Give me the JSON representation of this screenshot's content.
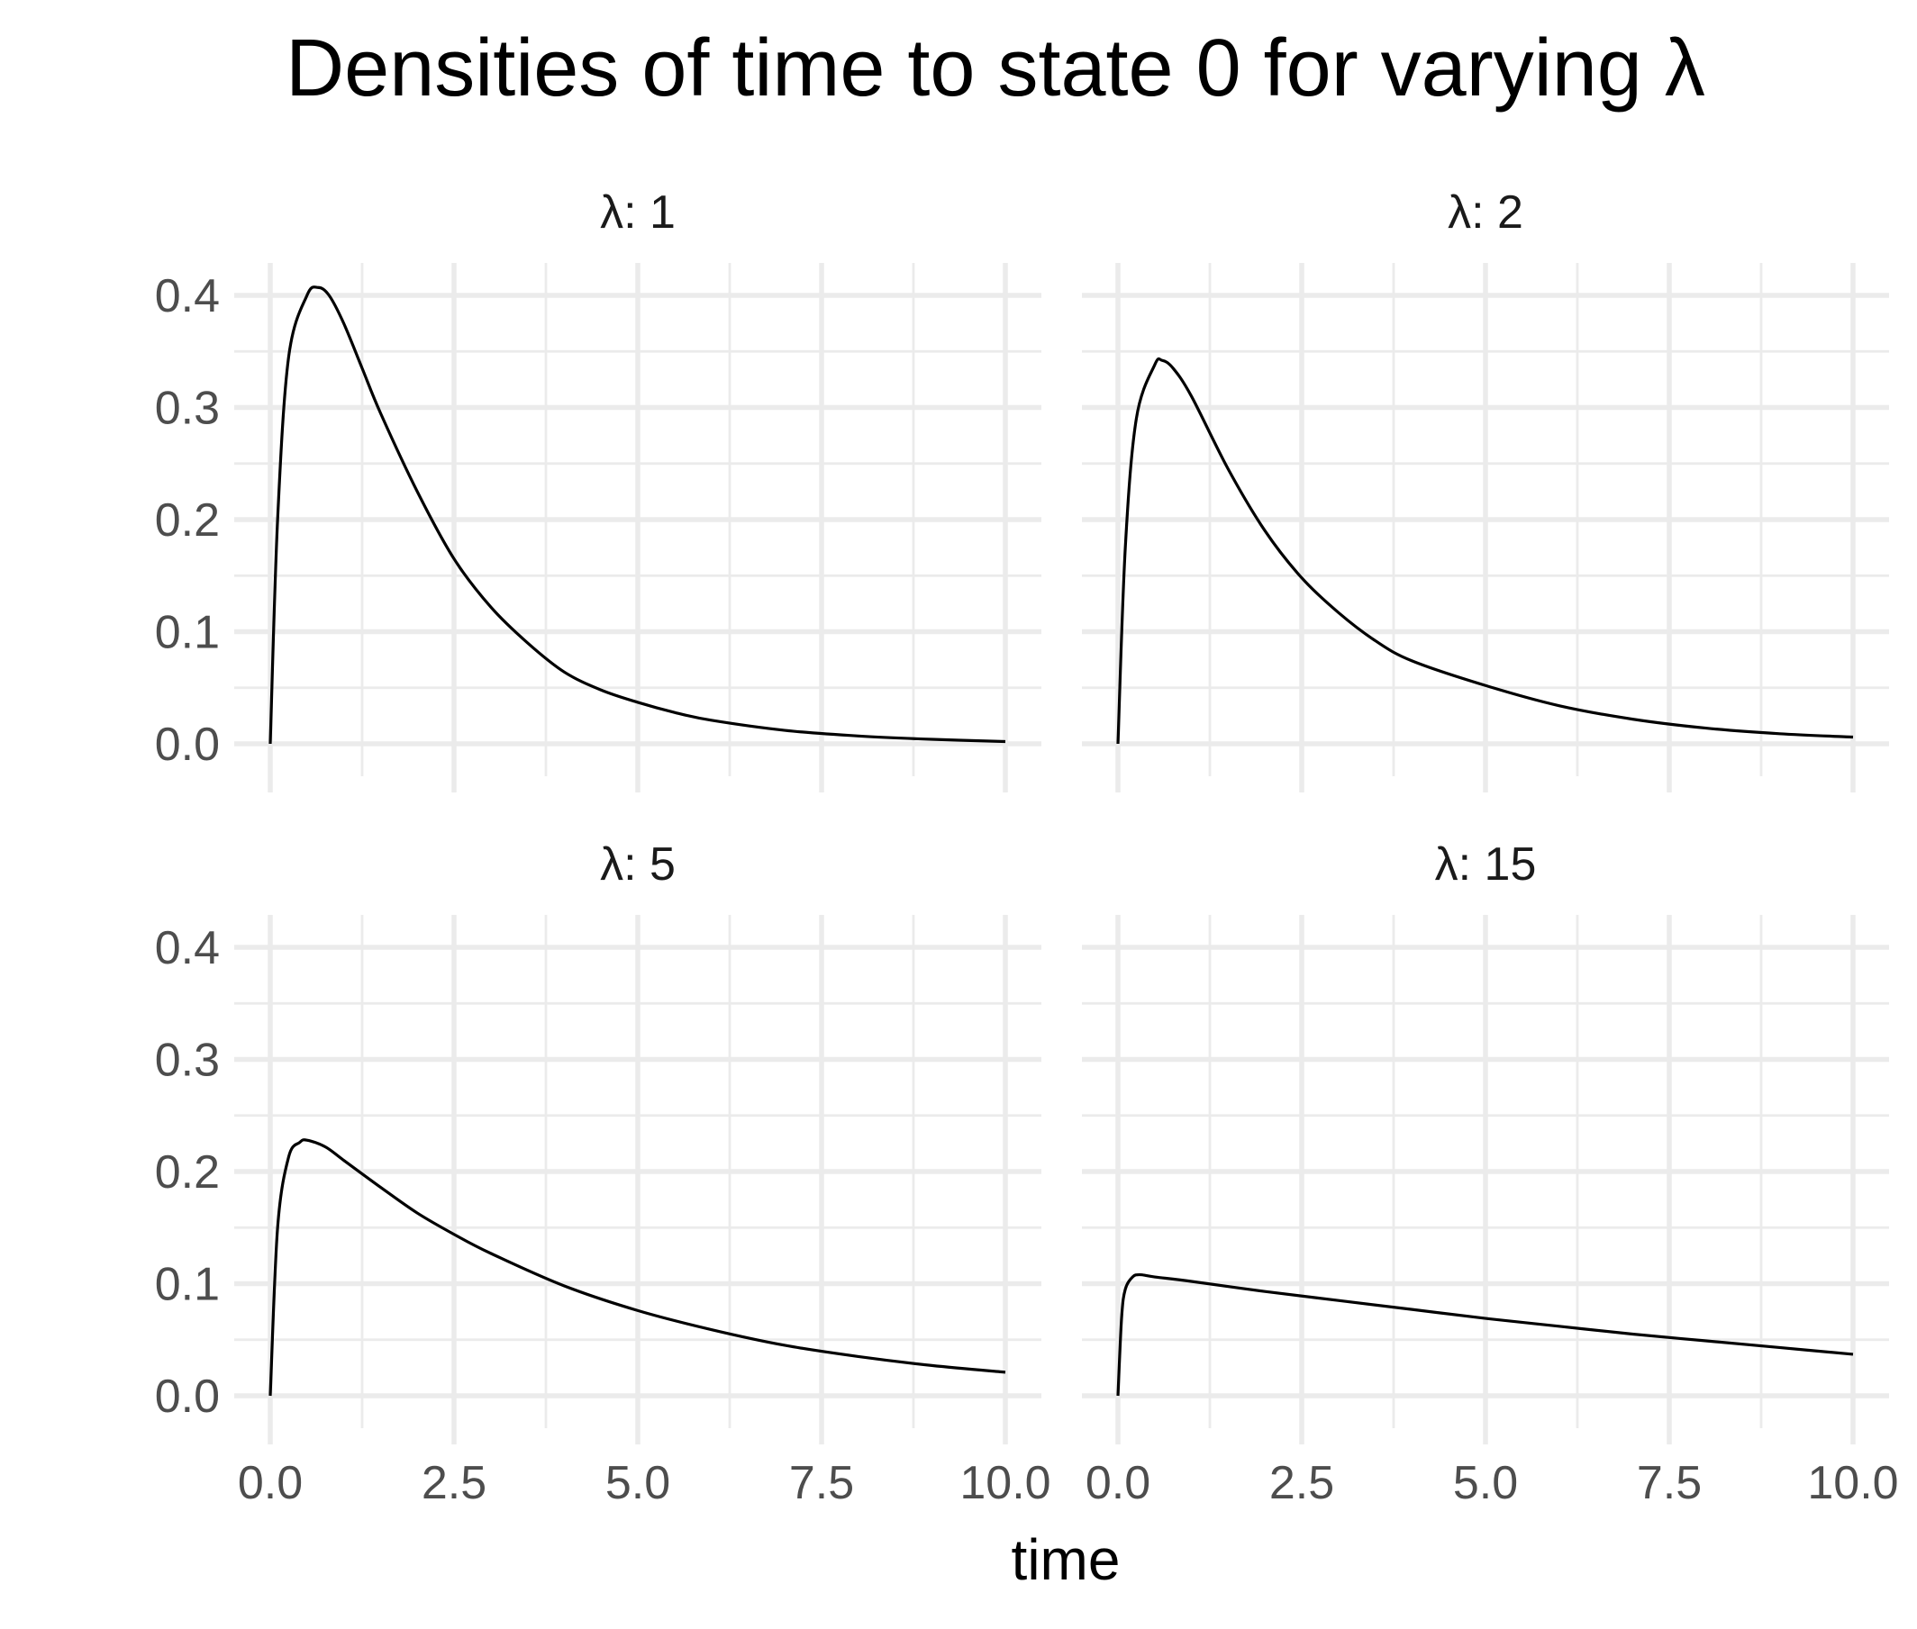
{
  "chart_data": {
    "type": "line",
    "title": "Densities of time to state 0 for varying λ",
    "xlabel": "time",
    "ylabel": "",
    "xlim": [
      0,
      10
    ],
    "ylim": [
      0,
      0.4
    ],
    "x_ticks": [
      "0.0",
      "2.5",
      "5.0",
      "7.5",
      "10.0"
    ],
    "y_ticks": [
      "0.0",
      "0.1",
      "0.2",
      "0.3",
      "0.4"
    ],
    "grid": true,
    "line_color": "#000000",
    "grid_color": "#ebebeb",
    "panels": [
      {
        "strip": "λ: 1",
        "x": [
          0,
          0.1,
          0.25,
          0.5,
          0.65,
          0.8,
          1.0,
          1.25,
          1.5,
          2.0,
          2.5,
          3.0,
          3.5,
          4.0,
          4.5,
          5.0,
          5.5,
          6.0,
          7.0,
          8.0,
          9.0,
          10.0
        ],
        "y": [
          0.0,
          0.2,
          0.345,
          0.4,
          0.407,
          0.4,
          0.375,
          0.335,
          0.295,
          0.225,
          0.165,
          0.122,
          0.09,
          0.064,
          0.048,
          0.037,
          0.028,
          0.021,
          0.012,
          0.007,
          0.004,
          0.002
        ]
      },
      {
        "strip": "λ: 2",
        "x": [
          0,
          0.1,
          0.25,
          0.5,
          0.6,
          0.75,
          1.0,
          1.5,
          2.0,
          2.5,
          3.0,
          3.5,
          4.0,
          5.0,
          6.0,
          7.0,
          8.0,
          9.0,
          10.0
        ],
        "y": [
          0.0,
          0.175,
          0.29,
          0.338,
          0.342,
          0.335,
          0.31,
          0.245,
          0.19,
          0.148,
          0.117,
          0.092,
          0.074,
          0.052,
          0.034,
          0.022,
          0.014,
          0.009,
          0.006
        ]
      },
      {
        "strip": "λ: 5",
        "x": [
          0,
          0.1,
          0.25,
          0.4,
          0.5,
          0.75,
          1.0,
          1.5,
          2.0,
          2.5,
          3.0,
          4.0,
          5.0,
          6.0,
          7.0,
          8.0,
          9.0,
          10.0
        ],
        "y": [
          0.0,
          0.15,
          0.213,
          0.226,
          0.228,
          0.222,
          0.21,
          0.186,
          0.163,
          0.144,
          0.127,
          0.098,
          0.076,
          0.059,
          0.045,
          0.035,
          0.027,
          0.021
        ]
      },
      {
        "strip": "λ: 15",
        "x": [
          0,
          0.05,
          0.1,
          0.2,
          0.3,
          0.5,
          1.0,
          2.0,
          3.0,
          4.0,
          5.0,
          6.0,
          7.0,
          8.0,
          9.0,
          10.0
        ],
        "y": [
          0.0,
          0.07,
          0.095,
          0.106,
          0.108,
          0.106,
          0.102,
          0.093,
          0.085,
          0.077,
          0.069,
          0.062,
          0.055,
          0.049,
          0.043,
          0.037
        ]
      }
    ]
  }
}
